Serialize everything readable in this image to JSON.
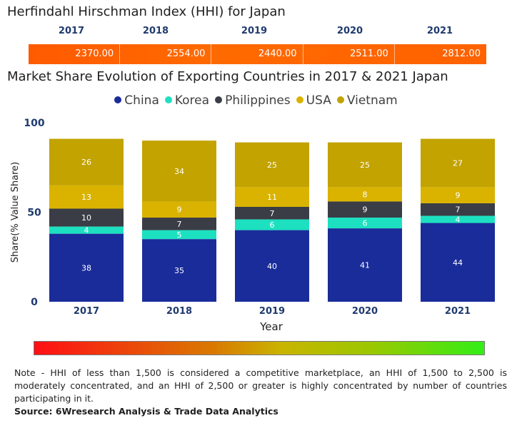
{
  "hhi": {
    "title": "Herfindahl Hirschman Index (HHI) for Japan",
    "years": [
      "2017",
      "2018",
      "2019",
      "2020",
      "2021"
    ],
    "values": [
      "2370.00",
      "2554.00",
      "2440.00",
      "2511.00",
      "2812.00"
    ],
    "bar_color": "#ff6a00"
  },
  "chart_data": {
    "type": "bar",
    "stacked": true,
    "title": "Market Share Evolution of Exporting Countries in 2017 & 2021 Japan",
    "categories": [
      "2017",
      "2018",
      "2019",
      "2020",
      "2021"
    ],
    "series": [
      {
        "name": "China",
        "color": "#1a2c9a",
        "values": [
          38,
          35,
          40,
          41,
          44
        ]
      },
      {
        "name": "Korea",
        "color": "#1de0c0",
        "values": [
          4,
          5,
          6,
          6,
          4
        ]
      },
      {
        "name": "Philippines",
        "color": "#3a3d45",
        "values": [
          10,
          7,
          7,
          9,
          7
        ]
      },
      {
        "name": "USA",
        "color": "#d9b300",
        "values": [
          13,
          9,
          11,
          8,
          9
        ]
      },
      {
        "name": "Vietnam",
        "color": "#c2a300",
        "values": [
          26,
          34,
          25,
          25,
          27
        ]
      }
    ],
    "xlabel": "Year",
    "ylabel": "Share(% Value Share)",
    "ylim": [
      0,
      100
    ],
    "yticks": [
      "0",
      "50",
      "100"
    ],
    "legend": "top-center",
    "grid": false
  },
  "note": {
    "text": "Note - HHI of less than 1,500 is considered a competitive marketplace, an HHI of 1,500 to 2,500 is moderately concentrated, and an HHI of 2,500 or greater is highly concentrated by number of countries participating in it.",
    "source": "Source: 6Wresearch Analysis & Trade Data Analytics"
  }
}
